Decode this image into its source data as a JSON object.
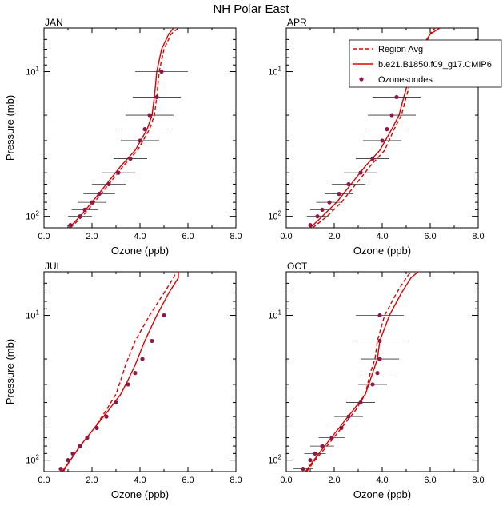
{
  "figure_title": "NH Polar East",
  "legend": {
    "entries": [
      {
        "label": "Region Avg",
        "style": "dashed",
        "color": "#dd0000"
      },
      {
        "label": "b.e21.B1850.f09_g17.CMIP6",
        "style": "solid",
        "color": "#dd0000"
      },
      {
        "label": "Ozonesondes",
        "style": "marker",
        "color": "#8b1a4a"
      }
    ]
  },
  "chart_data": [
    {
      "type": "line",
      "panel": "JAN",
      "title": "JAN",
      "xlabel": "Ozone (ppb)",
      "ylabel": "Pressure (mb)",
      "xlim": [
        0,
        8
      ],
      "xticks": [
        "0.0",
        "2.0",
        "4.0",
        "6.0",
        "8.0"
      ],
      "ylim": [
        120,
        5
      ],
      "yscale": "log",
      "yticks": [
        {
          "value": 10,
          "label": "10",
          "exp": "1"
        },
        {
          "value": 100,
          "label": "10",
          "exp": "2"
        }
      ],
      "series": [
        {
          "name": "Region Avg",
          "style": "dashed",
          "color": "#dd0000",
          "x": [
            1.1,
            1.6,
            2.1,
            2.7,
            3.3,
            3.9,
            4.4,
            4.6,
            4.7,
            4.8,
            5.0,
            5.3,
            5.6
          ],
          "y": [
            120,
            100,
            80,
            60,
            45,
            35,
            25,
            20,
            15,
            10,
            7,
            5.5,
            5
          ]
        },
        {
          "name": "b.e21.B1850.f09_g17.CMIP6",
          "style": "solid",
          "color": "#dd0000",
          "x": [
            1.05,
            1.5,
            2.0,
            2.6,
            3.2,
            3.8,
            4.3,
            4.5,
            4.6,
            4.7,
            4.9,
            5.2,
            5.4
          ],
          "y": [
            120,
            100,
            80,
            60,
            45,
            35,
            25,
            20,
            15,
            10,
            7,
            5.5,
            5
          ]
        },
        {
          "name": "Ozonesondes",
          "style": "marker",
          "color": "#8b1a4a",
          "x": [
            1.1,
            1.5,
            1.7,
            2.0,
            2.3,
            2.7,
            3.1,
            3.6,
            4.0,
            4.2,
            4.4,
            4.7,
            4.9
          ],
          "y": [
            115,
            100,
            90,
            80,
            70,
            60,
            50,
            40,
            30,
            25,
            20,
            15,
            10
          ],
          "xerr": [
            0.45,
            0.5,
            0.55,
            0.6,
            0.65,
            0.7,
            0.7,
            0.7,
            0.8,
            1.0,
            1.0,
            1.0,
            1.1
          ]
        }
      ]
    },
    {
      "type": "line",
      "panel": "APR",
      "title": "APR",
      "xlabel": "Ozone (ppb)",
      "ylabel": "",
      "xlim": [
        0,
        8
      ],
      "xticks": [
        "0.0",
        "2.0",
        "4.0",
        "6.0",
        "8.0"
      ],
      "ylim": [
        120,
        5
      ],
      "yscale": "log",
      "yticks": [
        {
          "value": 10,
          "label": "10",
          "exp": "1"
        },
        {
          "value": 100,
          "label": "10",
          "exp": "2"
        }
      ],
      "series": [
        {
          "name": "Region Avg",
          "style": "dashed",
          "color": "#dd0000",
          "x": [
            1.1,
            1.7,
            2.3,
            2.9,
            3.5,
            4.1,
            4.5,
            4.8,
            5.0,
            5.3,
            5.7,
            6.0,
            6.2
          ],
          "y": [
            120,
            100,
            80,
            60,
            45,
            35,
            25,
            20,
            15,
            10,
            7,
            5.5,
            5
          ]
        },
        {
          "name": "b.e21.B1850.f09_g17.CMIP6",
          "style": "solid",
          "color": "#dd0000",
          "x": [
            1.0,
            1.5,
            2.1,
            2.7,
            3.3,
            3.9,
            4.4,
            4.7,
            4.9,
            5.2,
            5.6,
            6.0,
            6.4
          ],
          "y": [
            120,
            100,
            80,
            60,
            45,
            35,
            25,
            20,
            15,
            10,
            7,
            5.5,
            5
          ]
        },
        {
          "name": "Ozonesondes",
          "style": "marker",
          "color": "#8b1a4a",
          "x": [
            1.0,
            1.3,
            1.5,
            1.8,
            2.2,
            2.6,
            3.1,
            3.6,
            4.0,
            4.2,
            4.4,
            4.6,
            5.0
          ],
          "y": [
            115,
            100,
            90,
            80,
            70,
            60,
            50,
            40,
            30,
            25,
            20,
            15,
            10
          ],
          "xerr": [
            0.4,
            0.45,
            0.5,
            0.55,
            0.6,
            0.7,
            0.7,
            0.7,
            0.8,
            0.9,
            1.0,
            1.0,
            1.0
          ]
        }
      ]
    },
    {
      "type": "line",
      "panel": "JUL",
      "title": "JUL",
      "xlabel": "Ozone (ppb)",
      "ylabel": "Pressure (mb)",
      "xlim": [
        0,
        8
      ],
      "xticks": [
        "0.0",
        "2.0",
        "4.0",
        "6.0",
        "8.0"
      ],
      "ylim": [
        120,
        5
      ],
      "yscale": "log",
      "yticks": [
        {
          "value": 10,
          "label": "10",
          "exp": "1"
        },
        {
          "value": 100,
          "label": "10",
          "exp": "2"
        }
      ],
      "series": [
        {
          "name": "Region Avg",
          "style": "dashed",
          "color": "#dd0000",
          "x": [
            0.8,
            1.1,
            1.5,
            2.1,
            2.6,
            3.0,
            3.2,
            3.4,
            3.8,
            4.4,
            5.0,
            5.4,
            5.5
          ],
          "y": [
            120,
            100,
            80,
            60,
            45,
            35,
            28,
            22,
            15,
            10,
            7,
            5.5,
            5
          ]
        },
        {
          "name": "b.e21.B1850.f09_g17.CMIP6",
          "style": "solid",
          "color": "#dd0000",
          "x": [
            0.75,
            1.1,
            1.5,
            2.1,
            2.7,
            3.2,
            3.5,
            3.8,
            4.2,
            4.7,
            5.2,
            5.6,
            5.6
          ],
          "y": [
            120,
            100,
            80,
            60,
            45,
            35,
            28,
            22,
            15,
            10,
            7,
            5.5,
            5
          ]
        },
        {
          "name": "Ozonesondes",
          "style": "marker",
          "color": "#8b1a4a",
          "x": [
            0.7,
            1.0,
            1.2,
            1.5,
            1.8,
            2.2,
            2.6,
            3.0,
            3.5,
            3.8,
            4.1,
            4.5,
            5.0
          ],
          "y": [
            115,
            100,
            90,
            80,
            70,
            60,
            50,
            40,
            30,
            25,
            20,
            15,
            10
          ]
        }
      ]
    },
    {
      "type": "line",
      "panel": "OCT",
      "title": "OCT",
      "xlabel": "Ozone (ppb)",
      "ylabel": "",
      "xlim": [
        0,
        8
      ],
      "xticks": [
        "0.0",
        "2.0",
        "4.0",
        "6.0",
        "8.0"
      ],
      "ylim": [
        120,
        5
      ],
      "yscale": "log",
      "yticks": [
        {
          "value": 10,
          "label": "10",
          "exp": "1"
        },
        {
          "value": 100,
          "label": "10",
          "exp": "2"
        }
      ],
      "series": [
        {
          "name": "Region Avg",
          "style": "dashed",
          "color": "#dd0000",
          "x": [
            0.85,
            1.2,
            1.7,
            2.3,
            2.9,
            3.3,
            3.5,
            3.7,
            3.8,
            4.1,
            4.6,
            5.0,
            5.2
          ],
          "y": [
            120,
            100,
            80,
            60,
            45,
            35,
            25,
            20,
            15,
            10,
            7,
            5.5,
            5
          ]
        },
        {
          "name": "b.e21.B1850.f09_g17.CMIP6",
          "style": "solid",
          "color": "#dd0000",
          "x": [
            0.8,
            1.15,
            1.6,
            2.2,
            2.8,
            3.3,
            3.6,
            3.8,
            3.9,
            4.3,
            4.8,
            5.2,
            5.5
          ],
          "y": [
            120,
            100,
            80,
            60,
            45,
            35,
            25,
            20,
            15,
            10,
            7,
            5.5,
            5
          ]
        },
        {
          "name": "Ozonesondes",
          "style": "marker",
          "color": "#8b1a4a",
          "x": [
            0.7,
            1.0,
            1.2,
            1.5,
            1.9,
            2.3,
            2.6,
            3.1,
            3.6,
            3.8,
            3.9,
            3.9,
            3.9
          ],
          "y": [
            115,
            100,
            90,
            80,
            70,
            60,
            50,
            40,
            30,
            25,
            20,
            15,
            10
          ],
          "xerr": [
            0.4,
            0.4,
            0.45,
            0.5,
            0.55,
            0.55,
            0.6,
            0.6,
            0.6,
            0.7,
            0.8,
            1.0,
            1.0
          ]
        }
      ]
    }
  ]
}
